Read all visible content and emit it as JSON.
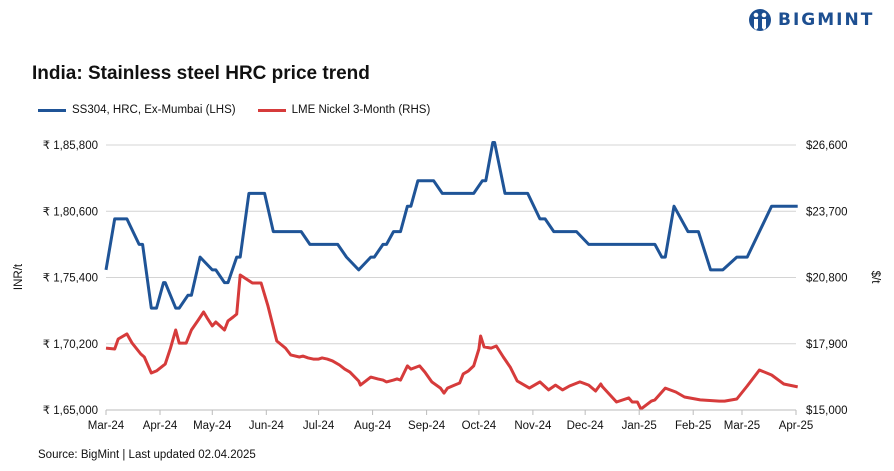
{
  "logo": {
    "text": "BIGMINT",
    "color": "#1d4f91"
  },
  "chart_data": {
    "type": "line",
    "title": "India: Stainless steel HRC price trend",
    "source": "Source: BigMint | Last updated 02.04.2025",
    "ylabel_left": "INR/t",
    "ylabel_right": "$/t",
    "ylim_left": [
      165000,
      185800
    ],
    "ylim_right": [
      15000,
      26600
    ],
    "yticks_left": [
      "₹ 1,65,000",
      "₹ 1,70,200",
      "₹ 1,75,400",
      "₹ 1,80,600",
      "₹ 1,85,800"
    ],
    "yticks_right": [
      "$15,000",
      "$17,900",
      "$20,800",
      "$23,700",
      "$26,600"
    ],
    "xlim": [
      "2024-03-01",
      "2025-04-01"
    ],
    "xticks": [
      {
        "date": "2024-03-01",
        "label": "Mar-24"
      },
      {
        "date": "2024-04-01",
        "label": "Apr-24"
      },
      {
        "date": "2024-05-01",
        "label": "May-24"
      },
      {
        "date": "2024-06-01",
        "label": "Jun-24"
      },
      {
        "date": "2024-07-01",
        "label": "Jul-24"
      },
      {
        "date": "2024-08-01",
        "label": "Aug-24"
      },
      {
        "date": "2024-09-01",
        "label": "Sep-24"
      },
      {
        "date": "2024-10-01",
        "label": "Oct-24"
      },
      {
        "date": "2024-11-01",
        "label": "Nov-24"
      },
      {
        "date": "2024-12-01",
        "label": "Dec-24"
      },
      {
        "date": "2025-01-01",
        "label": "Jan-25"
      },
      {
        "date": "2025-02-01",
        "label": "Feb-25"
      },
      {
        "date": "2025-03-01",
        "label": "Mar-25"
      },
      {
        "date": "2025-04-01",
        "label": "Apr-25"
      }
    ],
    "grid": true,
    "legend_position": "top-left",
    "series": [
      {
        "name": "SS304, HRC, Ex-Mumbai (LHS)",
        "axis": "left",
        "color": "#1f5497",
        "points": [
          [
            "2024-03-01",
            176000
          ],
          [
            "2024-03-06",
            180000
          ],
          [
            "2024-03-13",
            180000
          ],
          [
            "2024-03-20",
            178000
          ],
          [
            "2024-03-22",
            178000
          ],
          [
            "2024-03-27",
            173000
          ],
          [
            "2024-03-30",
            173000
          ],
          [
            "2024-04-03",
            175000
          ],
          [
            "2024-04-04",
            175000
          ],
          [
            "2024-04-10",
            173000
          ],
          [
            "2024-04-12",
            173000
          ],
          [
            "2024-04-17",
            174000
          ],
          [
            "2024-04-19",
            174000
          ],
          [
            "2024-04-24",
            177000
          ],
          [
            "2024-05-01",
            176000
          ],
          [
            "2024-05-03",
            176000
          ],
          [
            "2024-05-08",
            175000
          ],
          [
            "2024-05-10",
            175000
          ],
          [
            "2024-05-15",
            177000
          ],
          [
            "2024-05-17",
            177000
          ],
          [
            "2024-05-22",
            182000
          ],
          [
            "2024-05-31",
            182000
          ],
          [
            "2024-06-05",
            179000
          ],
          [
            "2024-06-21",
            179000
          ],
          [
            "2024-06-26",
            178000
          ],
          [
            "2024-07-12",
            178000
          ],
          [
            "2024-07-17",
            177000
          ],
          [
            "2024-07-24",
            176000
          ],
          [
            "2024-07-31",
            177000
          ],
          [
            "2024-08-02",
            177000
          ],
          [
            "2024-08-07",
            178000
          ],
          [
            "2024-08-09",
            178000
          ],
          [
            "2024-08-13",
            179000
          ],
          [
            "2024-08-17",
            179000
          ],
          [
            "2024-08-21",
            181000
          ],
          [
            "2024-08-23",
            181000
          ],
          [
            "2024-08-27",
            183000
          ],
          [
            "2024-09-05",
            183000
          ],
          [
            "2024-09-10",
            182000
          ],
          [
            "2024-09-28",
            182000
          ],
          [
            "2024-10-03",
            183000
          ],
          [
            "2024-10-05",
            183000
          ],
          [
            "2024-10-09",
            186000
          ],
          [
            "2024-10-10",
            186000
          ],
          [
            "2024-10-16",
            182000
          ],
          [
            "2024-10-29",
            182000
          ],
          [
            "2024-11-05",
            180000
          ],
          [
            "2024-11-08",
            180000
          ],
          [
            "2024-11-13",
            179000
          ],
          [
            "2024-11-26",
            179000
          ],
          [
            "2024-12-03",
            178000
          ],
          [
            "2025-01-10",
            178000
          ],
          [
            "2025-01-14",
            177000
          ],
          [
            "2025-01-16",
            177000
          ],
          [
            "2025-01-21",
            181000
          ],
          [
            "2025-01-29",
            179000
          ],
          [
            "2025-02-04",
            179000
          ],
          [
            "2025-02-11",
            176000
          ],
          [
            "2025-02-18",
            176000
          ],
          [
            "2025-02-26",
            177000
          ],
          [
            "2025-03-04",
            177000
          ],
          [
            "2025-03-18",
            181000
          ],
          [
            "2025-04-02",
            181000
          ]
        ]
      },
      {
        "name": "LME Nickel 3-Month (RHS)",
        "axis": "right",
        "color": "#d63b3b",
        "points": [
          [
            "2024-03-01",
            17710
          ],
          [
            "2024-03-06",
            17670
          ],
          [
            "2024-03-08",
            18110
          ],
          [
            "2024-03-13",
            18330
          ],
          [
            "2024-03-16",
            17930
          ],
          [
            "2024-03-21",
            17450
          ],
          [
            "2024-03-23",
            17320
          ],
          [
            "2024-03-27",
            16620
          ],
          [
            "2024-03-30",
            16710
          ],
          [
            "2024-04-04",
            17010
          ],
          [
            "2024-04-07",
            17710
          ],
          [
            "2024-04-10",
            18500
          ],
          [
            "2024-04-12",
            17930
          ],
          [
            "2024-04-16",
            17930
          ],
          [
            "2024-04-19",
            18500
          ],
          [
            "2024-04-23",
            18940
          ],
          [
            "2024-04-26",
            19290
          ],
          [
            "2024-04-28",
            19030
          ],
          [
            "2024-05-01",
            18680
          ],
          [
            "2024-05-03",
            18850
          ],
          [
            "2024-05-08",
            18500
          ],
          [
            "2024-05-10",
            18900
          ],
          [
            "2024-05-13",
            19070
          ],
          [
            "2024-05-15",
            19200
          ],
          [
            "2024-05-17",
            20910
          ],
          [
            "2024-05-24",
            20560
          ],
          [
            "2024-05-29",
            20560
          ],
          [
            "2024-06-02",
            19550
          ],
          [
            "2024-06-07",
            18020
          ],
          [
            "2024-06-12",
            17710
          ],
          [
            "2024-06-15",
            17410
          ],
          [
            "2024-06-20",
            17320
          ],
          [
            "2024-06-22",
            17360
          ],
          [
            "2024-06-25",
            17280
          ],
          [
            "2024-06-28",
            17230
          ],
          [
            "2024-07-01",
            17230
          ],
          [
            "2024-07-03",
            17280
          ],
          [
            "2024-07-06",
            17230
          ],
          [
            "2024-07-09",
            17150
          ],
          [
            "2024-07-13",
            16970
          ],
          [
            "2024-07-16",
            16790
          ],
          [
            "2024-07-19",
            16660
          ],
          [
            "2024-07-24",
            16270
          ],
          [
            "2024-07-25",
            16090
          ],
          [
            "2024-07-31",
            16440
          ],
          [
            "2024-08-04",
            16360
          ],
          [
            "2024-08-07",
            16310
          ],
          [
            "2024-08-09",
            16230
          ],
          [
            "2024-08-13",
            16310
          ],
          [
            "2024-08-15",
            16360
          ],
          [
            "2024-08-17",
            16310
          ],
          [
            "2024-08-21",
            16930
          ],
          [
            "2024-08-23",
            16790
          ],
          [
            "2024-08-28",
            16930
          ],
          [
            "2024-08-31",
            16660
          ],
          [
            "2024-09-04",
            16230
          ],
          [
            "2024-09-09",
            15960
          ],
          [
            "2024-09-11",
            15740
          ],
          [
            "2024-09-13",
            15960
          ],
          [
            "2024-09-17",
            16090
          ],
          [
            "2024-09-20",
            16180
          ],
          [
            "2024-09-22",
            16580
          ],
          [
            "2024-09-25",
            16710
          ],
          [
            "2024-09-28",
            16930
          ],
          [
            "2024-10-01",
            17670
          ],
          [
            "2024-10-02",
            18240
          ],
          [
            "2024-10-04",
            17760
          ],
          [
            "2024-10-08",
            17710
          ],
          [
            "2024-10-11",
            17800
          ],
          [
            "2024-10-15",
            17320
          ],
          [
            "2024-10-19",
            16880
          ],
          [
            "2024-10-23",
            16270
          ],
          [
            "2024-10-30",
            15960
          ],
          [
            "2024-11-05",
            16230
          ],
          [
            "2024-11-10",
            15880
          ],
          [
            "2024-11-14",
            16090
          ],
          [
            "2024-11-18",
            15880
          ],
          [
            "2024-11-22",
            16050
          ],
          [
            "2024-11-28",
            16230
          ],
          [
            "2024-12-03",
            16090
          ],
          [
            "2024-12-07",
            15830
          ],
          [
            "2024-12-10",
            16140
          ],
          [
            "2024-12-11",
            16010
          ],
          [
            "2024-12-19",
            15350
          ],
          [
            "2024-12-26",
            15530
          ],
          [
            "2024-12-28",
            15350
          ],
          [
            "2024-12-31",
            15350
          ],
          [
            "2025-01-02",
            15040
          ],
          [
            "2025-01-08",
            15390
          ],
          [
            "2025-01-10",
            15440
          ],
          [
            "2025-01-16",
            15960
          ],
          [
            "2025-01-22",
            15790
          ],
          [
            "2025-01-27",
            15570
          ],
          [
            "2025-02-05",
            15440
          ],
          [
            "2025-02-16",
            15390
          ],
          [
            "2025-02-19",
            15390
          ],
          [
            "2025-02-26",
            15480
          ],
          [
            "2025-03-04",
            16050
          ],
          [
            "2025-03-11",
            16750
          ],
          [
            "2025-03-18",
            16530
          ],
          [
            "2025-03-25",
            16140
          ],
          [
            "2025-04-02",
            16010
          ]
        ]
      }
    ]
  }
}
